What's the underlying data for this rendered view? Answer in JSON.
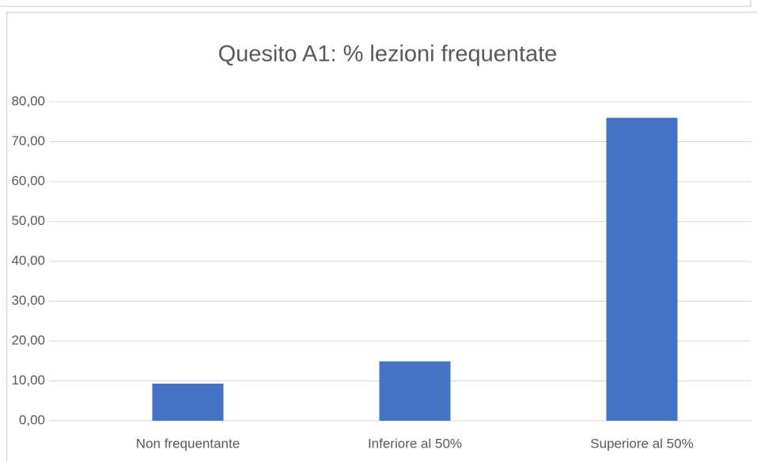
{
  "chart_data": {
    "type": "bar",
    "title": "Quesito A1: % lezioni frequentate",
    "categories": [
      "Non frequentante",
      "Inferiore al 50%",
      "Superiore al 50%"
    ],
    "values": [
      9.3,
      14.9,
      76.0
    ],
    "color": "#4472c4",
    "ylim": [
      0,
      80
    ],
    "yticks": [
      {
        "value": 0,
        "label": "0,00"
      },
      {
        "value": 10,
        "label": "10,00"
      },
      {
        "value": 20,
        "label": "20,00"
      },
      {
        "value": 30,
        "label": "30,00"
      },
      {
        "value": 40,
        "label": "40,00"
      },
      {
        "value": 50,
        "label": "50,00"
      },
      {
        "value": 60,
        "label": "60,00"
      },
      {
        "value": 70,
        "label": "70,00"
      },
      {
        "value": 80,
        "label": "80,00"
      }
    ],
    "grid": true
  }
}
